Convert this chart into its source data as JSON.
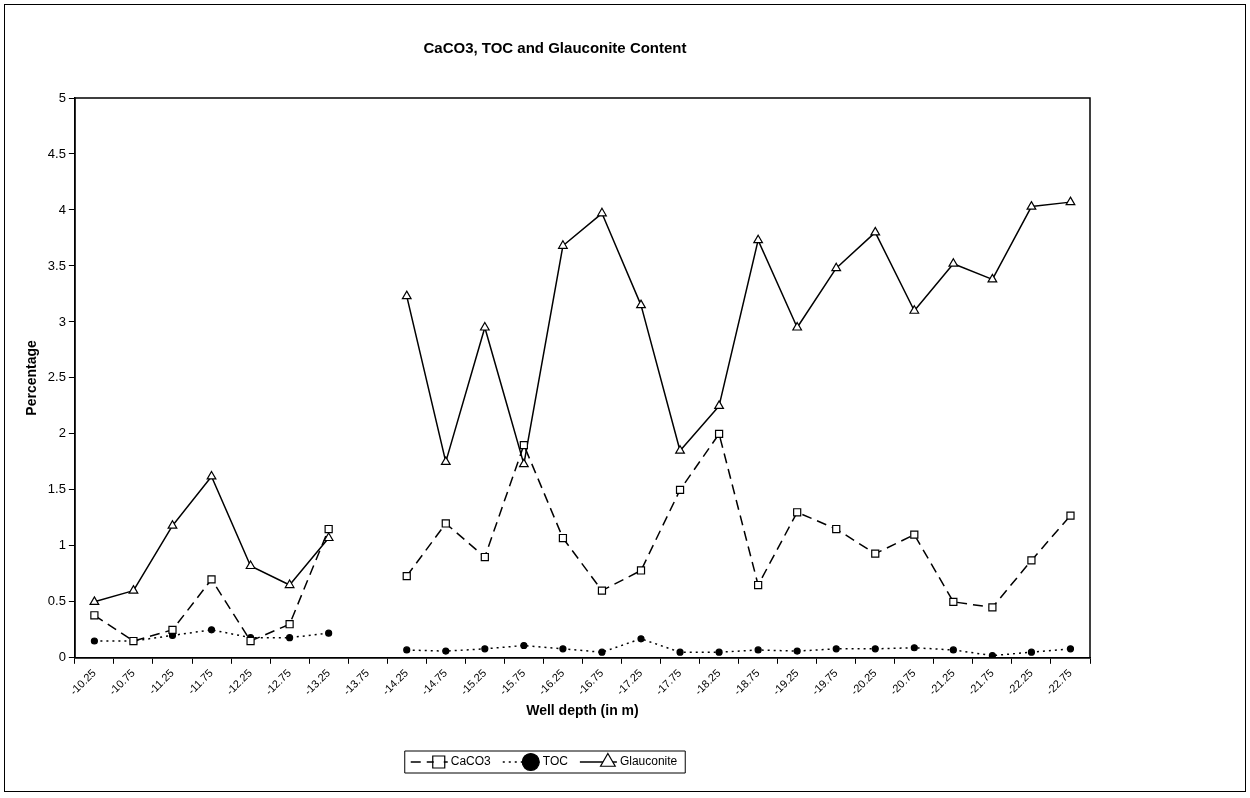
{
  "chart_data": {
    "type": "line",
    "title": "CaCO3, TOC and Glauconite Content",
    "xlabel": "Well depth (in m)",
    "ylabel": "Percentage",
    "categories": [
      "-10.25",
      "-10.75",
      "-11.25",
      "-11.75",
      "-12.25",
      "-12.75",
      "-13.25",
      "-13.75",
      "-14.25",
      "-14.75",
      "-15.25",
      "-15.75",
      "-16.25",
      "-16.75",
      "-17.25",
      "-17.75",
      "-18.25",
      "-18.75",
      "-19.25",
      "-19.75",
      "-20.25",
      "-20.75",
      "-21.25",
      "-21.75",
      "-22.25",
      "-22.75"
    ],
    "series": [
      {
        "name": "CaCO3",
        "color": "#000000",
        "marker": "square",
        "line_style": "dashed",
        "values": [
          0.38,
          0.15,
          0.25,
          0.7,
          0.15,
          0.3,
          1.15,
          null,
          0.73,
          1.2,
          0.9,
          1.9,
          1.07,
          0.6,
          0.78,
          1.5,
          2.0,
          0.65,
          1.3,
          1.15,
          0.93,
          1.1,
          0.5,
          0.45,
          0.87,
          1.27
        ]
      },
      {
        "name": "TOC",
        "color": "#000000",
        "marker": "circle",
        "line_style": "dotted",
        "values": [
          0.15,
          0.15,
          0.2,
          0.25,
          0.18,
          0.18,
          0.22,
          null,
          0.07,
          0.06,
          0.08,
          0.11,
          0.08,
          0.05,
          0.17,
          0.05,
          0.05,
          0.07,
          0.06,
          0.08,
          0.08,
          0.09,
          0.07,
          0.02,
          0.05,
          0.08
        ]
      },
      {
        "name": "Glauconite",
        "color": "#000000",
        "marker": "triangle",
        "line_style": "solid",
        "values": [
          0.5,
          0.6,
          1.18,
          1.62,
          0.82,
          0.65,
          1.07,
          null,
          3.23,
          1.75,
          2.95,
          1.73,
          3.68,
          3.97,
          3.15,
          1.85,
          2.25,
          3.73,
          2.95,
          3.48,
          3.8,
          3.1,
          3.52,
          3.38,
          4.03,
          4.07
        ]
      }
    ],
    "ylim": [
      0,
      5
    ],
    "yticks": [
      0,
      0.5,
      1,
      1.5,
      2,
      2.5,
      3,
      3.5,
      4,
      4.5,
      5
    ],
    "grid": false,
    "legend": "bottom"
  }
}
